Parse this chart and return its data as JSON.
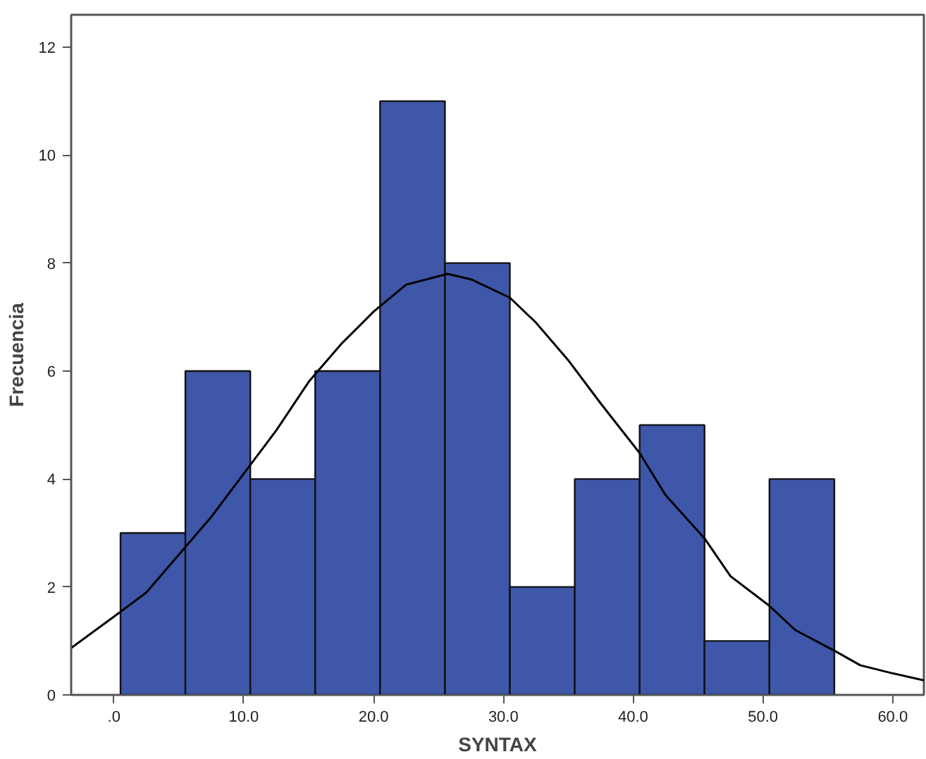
{
  "chart_data": {
    "type": "histogram",
    "xlabel": "SYNTAX",
    "ylabel": "Frecuencia",
    "bins": [
      0.5,
      5.5,
      10.5,
      15.5,
      20.5,
      25.5,
      30.5,
      35.5,
      40.5,
      45.5,
      50.5,
      55.5
    ],
    "values": [
      3,
      6,
      4,
      6,
      11,
      8,
      2,
      4,
      5,
      1,
      4
    ],
    "color": "#3f57a8",
    "series": [
      {
        "type": "line",
        "color": "#000000",
        "x": [
          -3.3,
          0,
          2.5,
          5,
          7.5,
          10,
          12.5,
          15,
          17.5,
          20,
          22.5,
          25.7,
          27.5,
          30.5,
          32.5,
          35,
          37.5,
          40.5,
          42.5,
          45.5,
          47.5,
          50.5,
          52.5,
          55.5,
          57.5,
          60,
          62.4
        ],
        "values": [
          0.87,
          1.45,
          1.9,
          2.6,
          3.3,
          4.1,
          4.9,
          5.8,
          6.5,
          7.1,
          7.6,
          7.8,
          7.7,
          7.36,
          6.9,
          6.2,
          5.4,
          4.48,
          3.7,
          2.9,
          2.2,
          1.65,
          1.2,
          0.82,
          0.55,
          0.4,
          0.27
        ]
      }
    ],
    "xlim": [
      -3.3,
      62.4
    ],
    "ylim": [
      0,
      12.6
    ],
    "xticks": [
      {
        "value": 0,
        "label": ".0"
      },
      {
        "value": 10,
        "label": "10.0"
      },
      {
        "value": 20,
        "label": "20.0"
      },
      {
        "value": 30,
        "label": "30.0"
      },
      {
        "value": 40,
        "label": "40.0"
      },
      {
        "value": 50,
        "label": "50.0"
      },
      {
        "value": 60,
        "label": "60.0"
      }
    ],
    "yticks": [
      0,
      2,
      4,
      6,
      8,
      10,
      12
    ],
    "grid": false
  }
}
